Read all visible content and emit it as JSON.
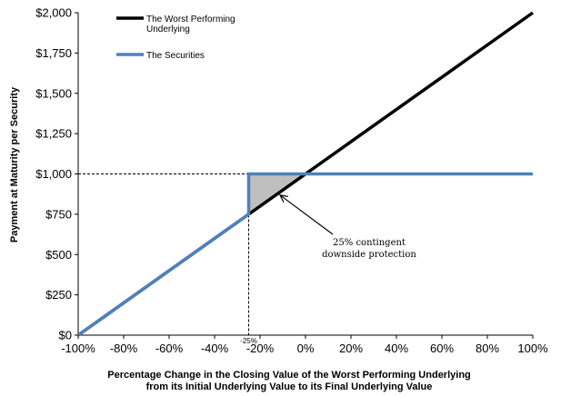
{
  "chart_data": {
    "type": "line",
    "title": "",
    "xlabel_lines": [
      "Percentage Change in the Closing Value of the Worst Performing Underlying",
      "from its Initial Underlying Value to its Final Underlying Value"
    ],
    "ylabel": "Payment at Maturity per Security",
    "x_ticks": [
      "-100%",
      "-80%",
      "-60%",
      "-40%",
      "-20%",
      "0%",
      "20%",
      "40%",
      "60%",
      "80%",
      "100%"
    ],
    "y_ticks": [
      "$0",
      "$250",
      "$500",
      "$750",
      "$1,000",
      "$1,250",
      "$1,500",
      "$1,750",
      "$2,000"
    ],
    "xlim": [
      -100,
      100
    ],
    "ylim": [
      0,
      2000
    ],
    "colors": {
      "worst": "#000000",
      "securities": "#4f81bd",
      "shade": "#bfbfbf"
    },
    "series": [
      {
        "name_lines": [
          "The Worst Performing",
          "Underlying"
        ],
        "key": "worst",
        "x": [
          -100,
          100
        ],
        "y": [
          0,
          2000
        ]
      },
      {
        "name_lines": [
          "The Securities"
        ],
        "key": "securities",
        "x": [
          -100,
          -25,
          -25,
          100
        ],
        "y": [
          0,
          750,
          1000,
          1000
        ]
      }
    ],
    "reference_lines": {
      "x_value": -25,
      "y_value": 1000,
      "x_label": "-25%"
    },
    "shaded_region": [
      [
        -25,
        750
      ],
      [
        -25,
        1000
      ],
      [
        0,
        1000
      ]
    ],
    "annotation": {
      "lines": [
        "25% contingent",
        "downside protection"
      ],
      "arrow_target": [
        -12,
        880
      ]
    }
  }
}
